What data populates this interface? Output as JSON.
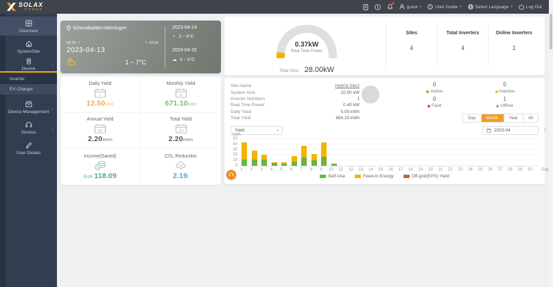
{
  "topbar": {
    "brand": "SOLAX",
    "brand_sub": "POWER",
    "user": "guest",
    "user_guide": "User Guide",
    "select_language": "Select Language",
    "logout": "Log Out"
  },
  "sidebar": {
    "items": [
      {
        "label": "Overview"
      },
      {
        "label": "SystemSite"
      },
      {
        "label": "Device"
      },
      {
        "label": "Inverter"
      },
      {
        "label": "EV Charger"
      },
      {
        "label": "Device Management"
      },
      {
        "label": "Service"
      },
      {
        "label": "User Details"
      }
    ]
  },
  "weather": {
    "location": "Schmalkalden-Meiningen",
    "sunrise": "06:30",
    "sunset": "20:06",
    "date": "2023-04-13",
    "temp_range": "1 ~ 7°C",
    "forecast": [
      {
        "date": "2023-04-14",
        "temp": "2 ~ 8°C"
      },
      {
        "date": "2023-04-15",
        "temp": "3 ~ 5°C"
      }
    ]
  },
  "stats": {
    "cards": [
      {
        "label": "Daily Yield",
        "value": "12.50",
        "unit": "kWh",
        "color": "#efa940"
      },
      {
        "label": "Monthly Yield",
        "value": "671.10",
        "unit": "kWh",
        "color": "#7cb95c"
      },
      {
        "label": "Annual Yield",
        "value": "2.20",
        "unit": "MWh",
        "color": "#4f5459"
      },
      {
        "label": "Total Yield",
        "value": "2.20",
        "unit": "MWh",
        "color": "#4f5459"
      },
      {
        "label": "Income(Saved)",
        "currency": "EUR",
        "value": "118.09",
        "color": "#3fae8c"
      },
      {
        "label": "CO₂ Reduction",
        "value": "2.19",
        "unit": "t",
        "color": "#48a8d8"
      }
    ]
  },
  "power": {
    "realtime_value": "0.37kW",
    "realtime_label": "Real Time Power",
    "total_size_label": "Total Size",
    "total_size_value": "28.00kW",
    "metrics": [
      {
        "label": "Sites",
        "value": "4"
      },
      {
        "label": "Total Inverters",
        "value": "4"
      },
      {
        "label": "Online Inverters",
        "value": "1"
      }
    ]
  },
  "site": {
    "rows": [
      {
        "label": "Site Name",
        "value": "Hybrid Site2"
      },
      {
        "label": "System Size",
        "value": "10.00 kW"
      },
      {
        "label": "Inverter Numbers",
        "value": "1"
      },
      {
        "label": "Real Time Power",
        "value": "0.40 kW"
      },
      {
        "label": "Daily Yield",
        "value": "0.00 kWh"
      },
      {
        "label": "Total Yield",
        "value": "694.20 kWh"
      }
    ],
    "status": [
      {
        "count": "0",
        "label": "Active",
        "color": "#67c23a"
      },
      {
        "count": "0",
        "label": "Inactive",
        "color": "#f5c400"
      },
      {
        "count": "0",
        "label": "Fault",
        "color": "#ef4b4b"
      },
      {
        "count": "1",
        "label": "Offline",
        "color": "#a8a8a8"
      }
    ]
  },
  "range_tabs": {
    "options": [
      "Day",
      "Month",
      "Year",
      "All"
    ],
    "selected": "Month"
  },
  "chart_controls": {
    "metric": "Yield",
    "date": "2023-04"
  },
  "chart_data": {
    "type": "bar",
    "stacked": true,
    "title": "",
    "ylabel": "kWh",
    "xlabel": "Day",
    "ylim": [
      0,
      50
    ],
    "yticks": [
      0,
      10,
      20,
      30,
      40,
      50
    ],
    "legend_position": "bottom",
    "categories": [
      1,
      2,
      3,
      4,
      5,
      6,
      7,
      8,
      9,
      10,
      11,
      12,
      13,
      14,
      15,
      16,
      17,
      18,
      19,
      20,
      21,
      22,
      23,
      24,
      25,
      26,
      27,
      28,
      29,
      30
    ],
    "series": [
      {
        "name": "Self-Use",
        "color": "#6cb33f",
        "values": [
          12,
          11,
          12,
          5,
          4,
          8,
          15,
          10,
          17,
          4,
          0,
          0,
          0,
          0,
          0,
          0,
          0,
          0,
          0,
          0,
          0,
          0,
          0,
          0,
          0,
          0,
          0,
          0,
          0,
          0
        ]
      },
      {
        "name": "Feed-In Energy",
        "color": "#f3b300",
        "values": [
          31,
          17,
          9,
          2,
          2,
          10,
          22,
          12,
          27,
          0,
          0,
          0,
          0,
          0,
          0,
          0,
          0,
          0,
          0,
          0,
          0,
          0,
          0,
          0,
          0,
          0,
          0,
          0,
          0,
          0
        ]
      },
      {
        "name": "Off-grid(EPS) Yield",
        "color": "#c9603a",
        "values": [
          0,
          0,
          0,
          0,
          0,
          0,
          0,
          0,
          0,
          0,
          0,
          0,
          0,
          0,
          0,
          0,
          0,
          0,
          0,
          0,
          0,
          0,
          0,
          0,
          0,
          0,
          0,
          0,
          0,
          0
        ]
      }
    ]
  }
}
